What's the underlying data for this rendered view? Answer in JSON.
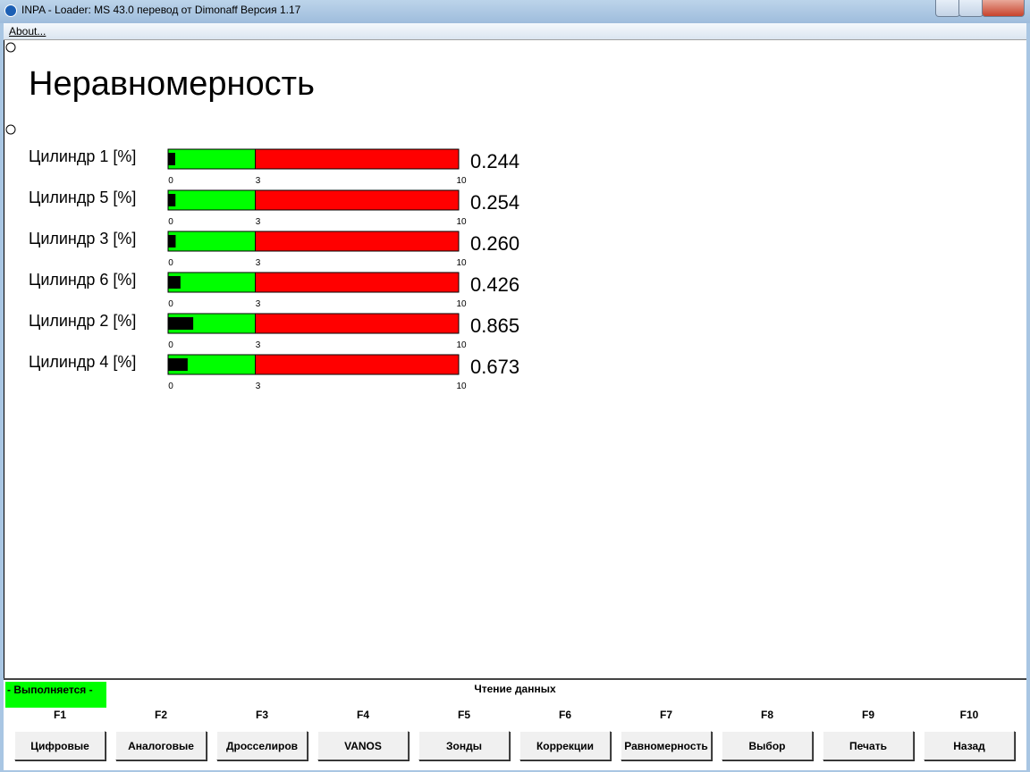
{
  "window": {
    "title": "INPA - Loader:  MS 43.0 перевод от Dimonaff Версия 1.17"
  },
  "menu": [
    "About..."
  ],
  "heading": "Неравномерность",
  "scale": {
    "lim": [
      0,
      10
    ],
    "threshold": 3,
    "ticks": [
      0,
      3,
      10
    ],
    "low_color": "#00ff00",
    "high_color": "#ff0000",
    "marker_color": "#000000"
  },
  "gauges": [
    {
      "label": "Цилиндр 1 [%]",
      "value": 0.244,
      "value_label": "0.244"
    },
    {
      "label": "Цилиндр 5 [%]",
      "value": 0.254,
      "value_label": "0.254"
    },
    {
      "label": "Цилиндр 3 [%]",
      "value": 0.26,
      "value_label": "0.260"
    },
    {
      "label": "Цилиндр 6 [%]",
      "value": 0.426,
      "value_label": "0.426"
    },
    {
      "label": "Цилиндр 2 [%]",
      "value": 0.865,
      "value_label": "0.865"
    },
    {
      "label": "Цилиндр 4 [%]",
      "value": 0.673,
      "value_label": "0.673"
    }
  ],
  "status": {
    "state": "- Выполняется -",
    "message": "Чтение данных"
  },
  "fkeys": [
    {
      "key": "F1",
      "label": "Цифровые"
    },
    {
      "key": "F2",
      "label": "Аналоговые"
    },
    {
      "key": "F3",
      "label": "Дросселиров"
    },
    {
      "key": "F4",
      "label": "VANOS"
    },
    {
      "key": "F5",
      "label": "Зонды"
    },
    {
      "key": "F6",
      "label": "Коррекции"
    },
    {
      "key": "F7",
      "label": "Равномерность"
    },
    {
      "key": "F8",
      "label": "Выбор"
    },
    {
      "key": "F9",
      "label": "Печать"
    },
    {
      "key": "F10",
      "label": "Назад"
    }
  ]
}
